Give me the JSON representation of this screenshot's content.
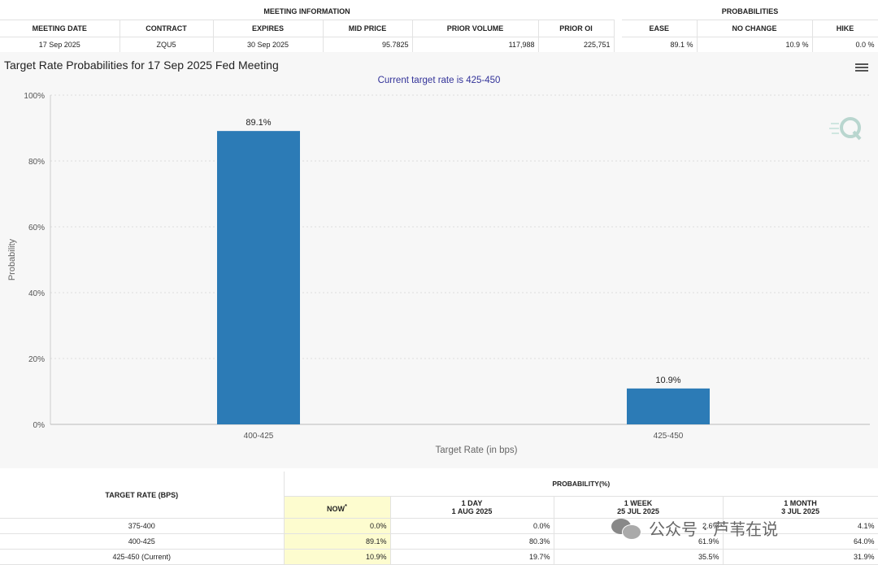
{
  "meeting_info": {
    "group_label": "MEETING INFORMATION",
    "headers": [
      "MEETING DATE",
      "CONTRACT",
      "EXPIRES",
      "MID PRICE",
      "PRIOR VOLUME",
      "PRIOR OI"
    ],
    "row": [
      "17 Sep 2025",
      "ZQU5",
      "30 Sep 2025",
      "95.7825",
      "117,988",
      "225,751"
    ]
  },
  "probabilities": {
    "group_label": "PROBABILITIES",
    "headers": [
      "EASE",
      "NO CHANGE",
      "HIKE"
    ],
    "row": [
      "89.1 %",
      "10.9 %",
      "0.0 %"
    ]
  },
  "chart": {
    "title": "Target Rate Probabilities for 17 Sep 2025 Fed Meeting",
    "subtitle": "Current target rate is 425-450",
    "menu_icon": "hamburger-menu-icon",
    "logo_icon": "q-logo-icon"
  },
  "chart_data": {
    "type": "bar",
    "categories": [
      "400-425",
      "425-450"
    ],
    "values": [
      89.1,
      10.9
    ],
    "data_labels": [
      "89.1%",
      "10.9%"
    ],
    "xlabel": "Target Rate (in bps)",
    "ylabel": "Probability",
    "ylim": [
      0,
      100
    ],
    "yticks": [
      "0%",
      "20%",
      "40%",
      "60%",
      "80%",
      "100%"
    ],
    "grid": true,
    "bar_color": "#2c7bb6"
  },
  "bottom_table": {
    "target_header": "TARGET RATE (BPS)",
    "prob_header": "PROBABILITY(%)",
    "columns": [
      {
        "line1": "NOW",
        "marker": "*",
        "line2": ""
      },
      {
        "line1": "1 DAY",
        "line2": "1 AUG 2025"
      },
      {
        "line1": "1 WEEK",
        "line2": "25 JUL 2025"
      },
      {
        "line1": "1 MONTH",
        "line2": "3 JUL 2025"
      }
    ],
    "rows": [
      {
        "rate": "375-400",
        "values": [
          "0.0%",
          "0.0%",
          "2.6%",
          "4.1%"
        ]
      },
      {
        "rate": "400-425",
        "values": [
          "89.1%",
          "80.3%",
          "61.9%",
          "64.0%"
        ]
      },
      {
        "rate": "425-450 (Current)",
        "values": [
          "10.9%",
          "19.7%",
          "35.5%",
          "31.9%"
        ]
      }
    ]
  },
  "watermark": {
    "text": "公众号 · 芦苇在说",
    "icon": "wechat-icon"
  }
}
